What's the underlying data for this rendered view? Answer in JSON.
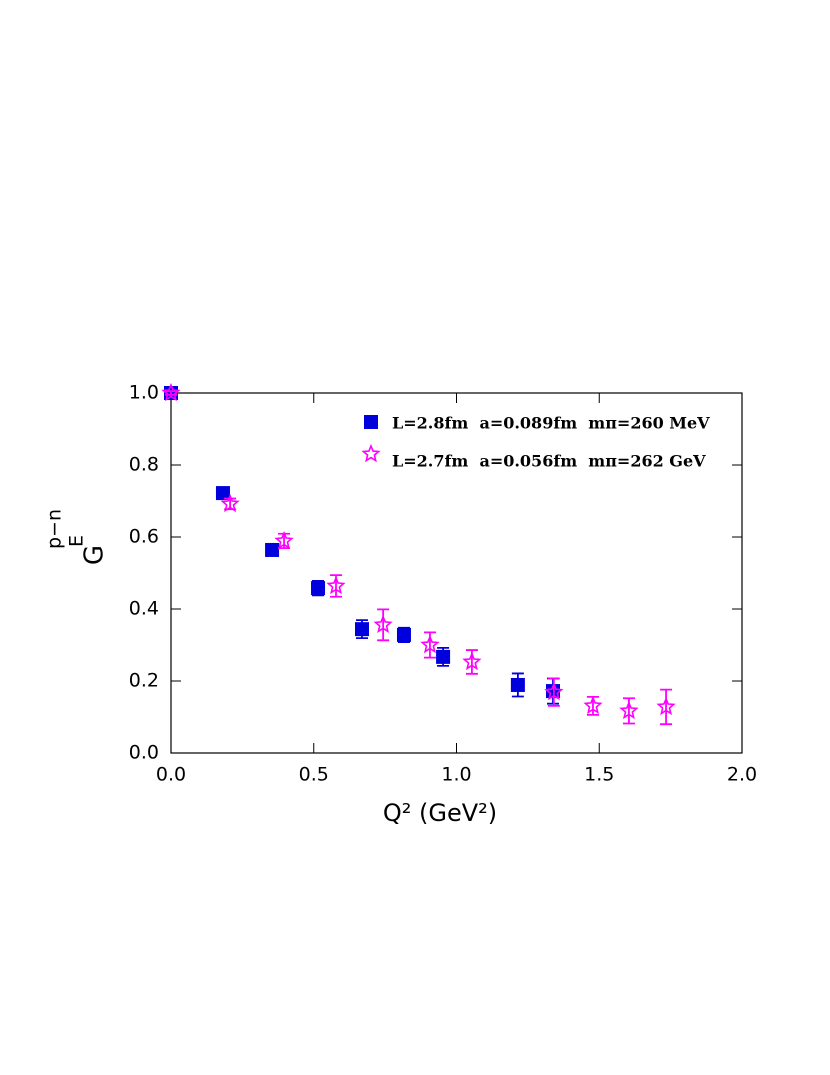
{
  "chart_data": {
    "type": "scatter",
    "y_label": "G",
    "y_label_sub": "E",
    "y_label_sup": "p−n",
    "x_label": "Q² (GeV²)",
    "xlim": [
      0,
      2
    ],
    "xticks": [
      {
        "value": 0,
        "label": "0.0"
      },
      0.5,
      {
        "value": 1,
        "label": "1.0"
      },
      1.5,
      {
        "value": 2,
        "label": "2.0"
      }
    ],
    "ylim": [
      0,
      1
    ],
    "yticks": [
      {
        "value": 0,
        "label": "0.0"
      },
      0.2,
      0.4,
      0.6,
      0.8,
      {
        "value": 1,
        "label": "1.0"
      }
    ],
    "legend": "upper right",
    "series": [
      {
        "name": "L=2.8fm  a=0.089fm  mπ=260 MeV",
        "color": "#0000dd",
        "marker": "square",
        "x": [
          0,
          0.182,
          0.354,
          0.515,
          0.669,
          0.816,
          0.953,
          1.215,
          1.338
        ],
        "values": [
          1,
          0.722,
          0.564,
          0.458,
          0.344,
          0.328,
          0.267,
          0.189,
          0.172
        ],
        "errors": [
          0.005,
          0.01,
          0.01,
          0.02,
          0.025,
          0.02,
          0.025,
          0.032,
          0.035
        ]
      },
      {
        "name": "L=2.7fm  a=0.056fm  mπ=262 GeV",
        "color": "#ff00ff",
        "marker": "star",
        "x": [
          0,
          0.207,
          0.396,
          0.578,
          0.743,
          0.907,
          1.054,
          1.341,
          1.478,
          1.604,
          1.734
        ],
        "values": [
          1,
          0.692,
          0.589,
          0.464,
          0.356,
          0.3,
          0.253,
          0.169,
          0.131,
          0.117,
          0.128
        ],
        "errors": [
          0.005,
          0.015,
          0.02,
          0.03,
          0.043,
          0.035,
          0.033,
          0.038,
          0.025,
          0.035,
          0.048
        ]
      }
    ]
  }
}
